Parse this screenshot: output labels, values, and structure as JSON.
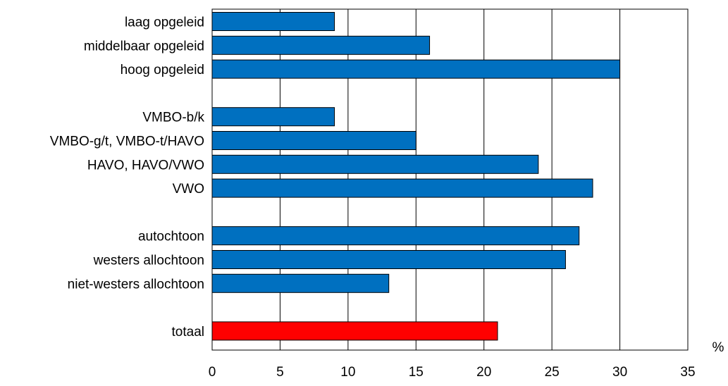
{
  "chart_data": {
    "type": "bar",
    "orientation": "horizontal",
    "categories": [
      "laag opgeleid",
      "middelbaar opgeleid",
      "hoog opgeleid",
      "",
      "VMBO-b/k",
      "VMBO-g/t, VMBO-t/HAVO",
      "HAVO, HAVO/VWO",
      "VWO",
      "",
      "autochtoon",
      "westers allochtoon",
      "niet-westers allochtoon",
      "",
      "totaal"
    ],
    "values": [
      9,
      16,
      30,
      null,
      9,
      15,
      24,
      28,
      null,
      27,
      26,
      13,
      null,
      21
    ],
    "highlight_category": "totaal",
    "xlim": [
      0,
      35
    ],
    "xticks": [
      "0",
      "5",
      "10",
      "15",
      "20",
      "25",
      "30",
      "35"
    ],
    "xunit": "%",
    "grid": "vertical",
    "legend": "none",
    "colors": {
      "bar": "#0070C0",
      "highlight": "#FF0000",
      "bar_outline": "#000000",
      "grid": "#000000",
      "frame": "#000000"
    }
  }
}
